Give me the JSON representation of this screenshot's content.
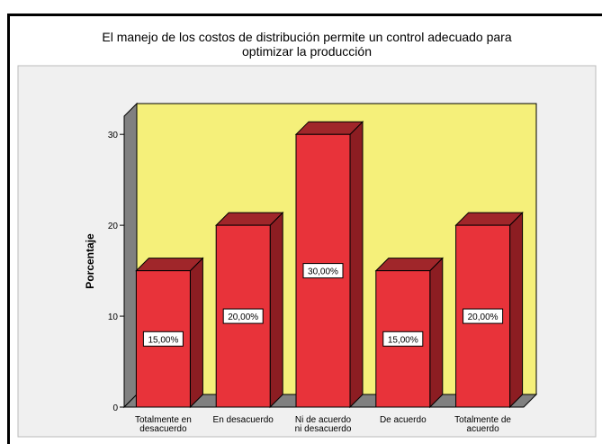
{
  "chart_data": {
    "type": "bar3d",
    "title": "El manejo de los costos de distribución permite un control adecuado para optimizar la producción",
    "y_label": "Porcentaje",
    "categories": [
      "Totalmente en\ndesacuerdo",
      "En desacuerdo",
      "Ni de acuerdo\nni desacuerdo",
      "De acuerdo",
      "Totalmente de\nacuerdo"
    ],
    "values": [
      15,
      20,
      30,
      15,
      20
    ],
    "value_labels": [
      "15,00%",
      "20,00%",
      "30,00%",
      "15,00%",
      "20,00%"
    ],
    "color": "#e8333a",
    "ylim": [
      0,
      32
    ],
    "yticks": [
      0,
      10,
      20,
      30
    ]
  }
}
